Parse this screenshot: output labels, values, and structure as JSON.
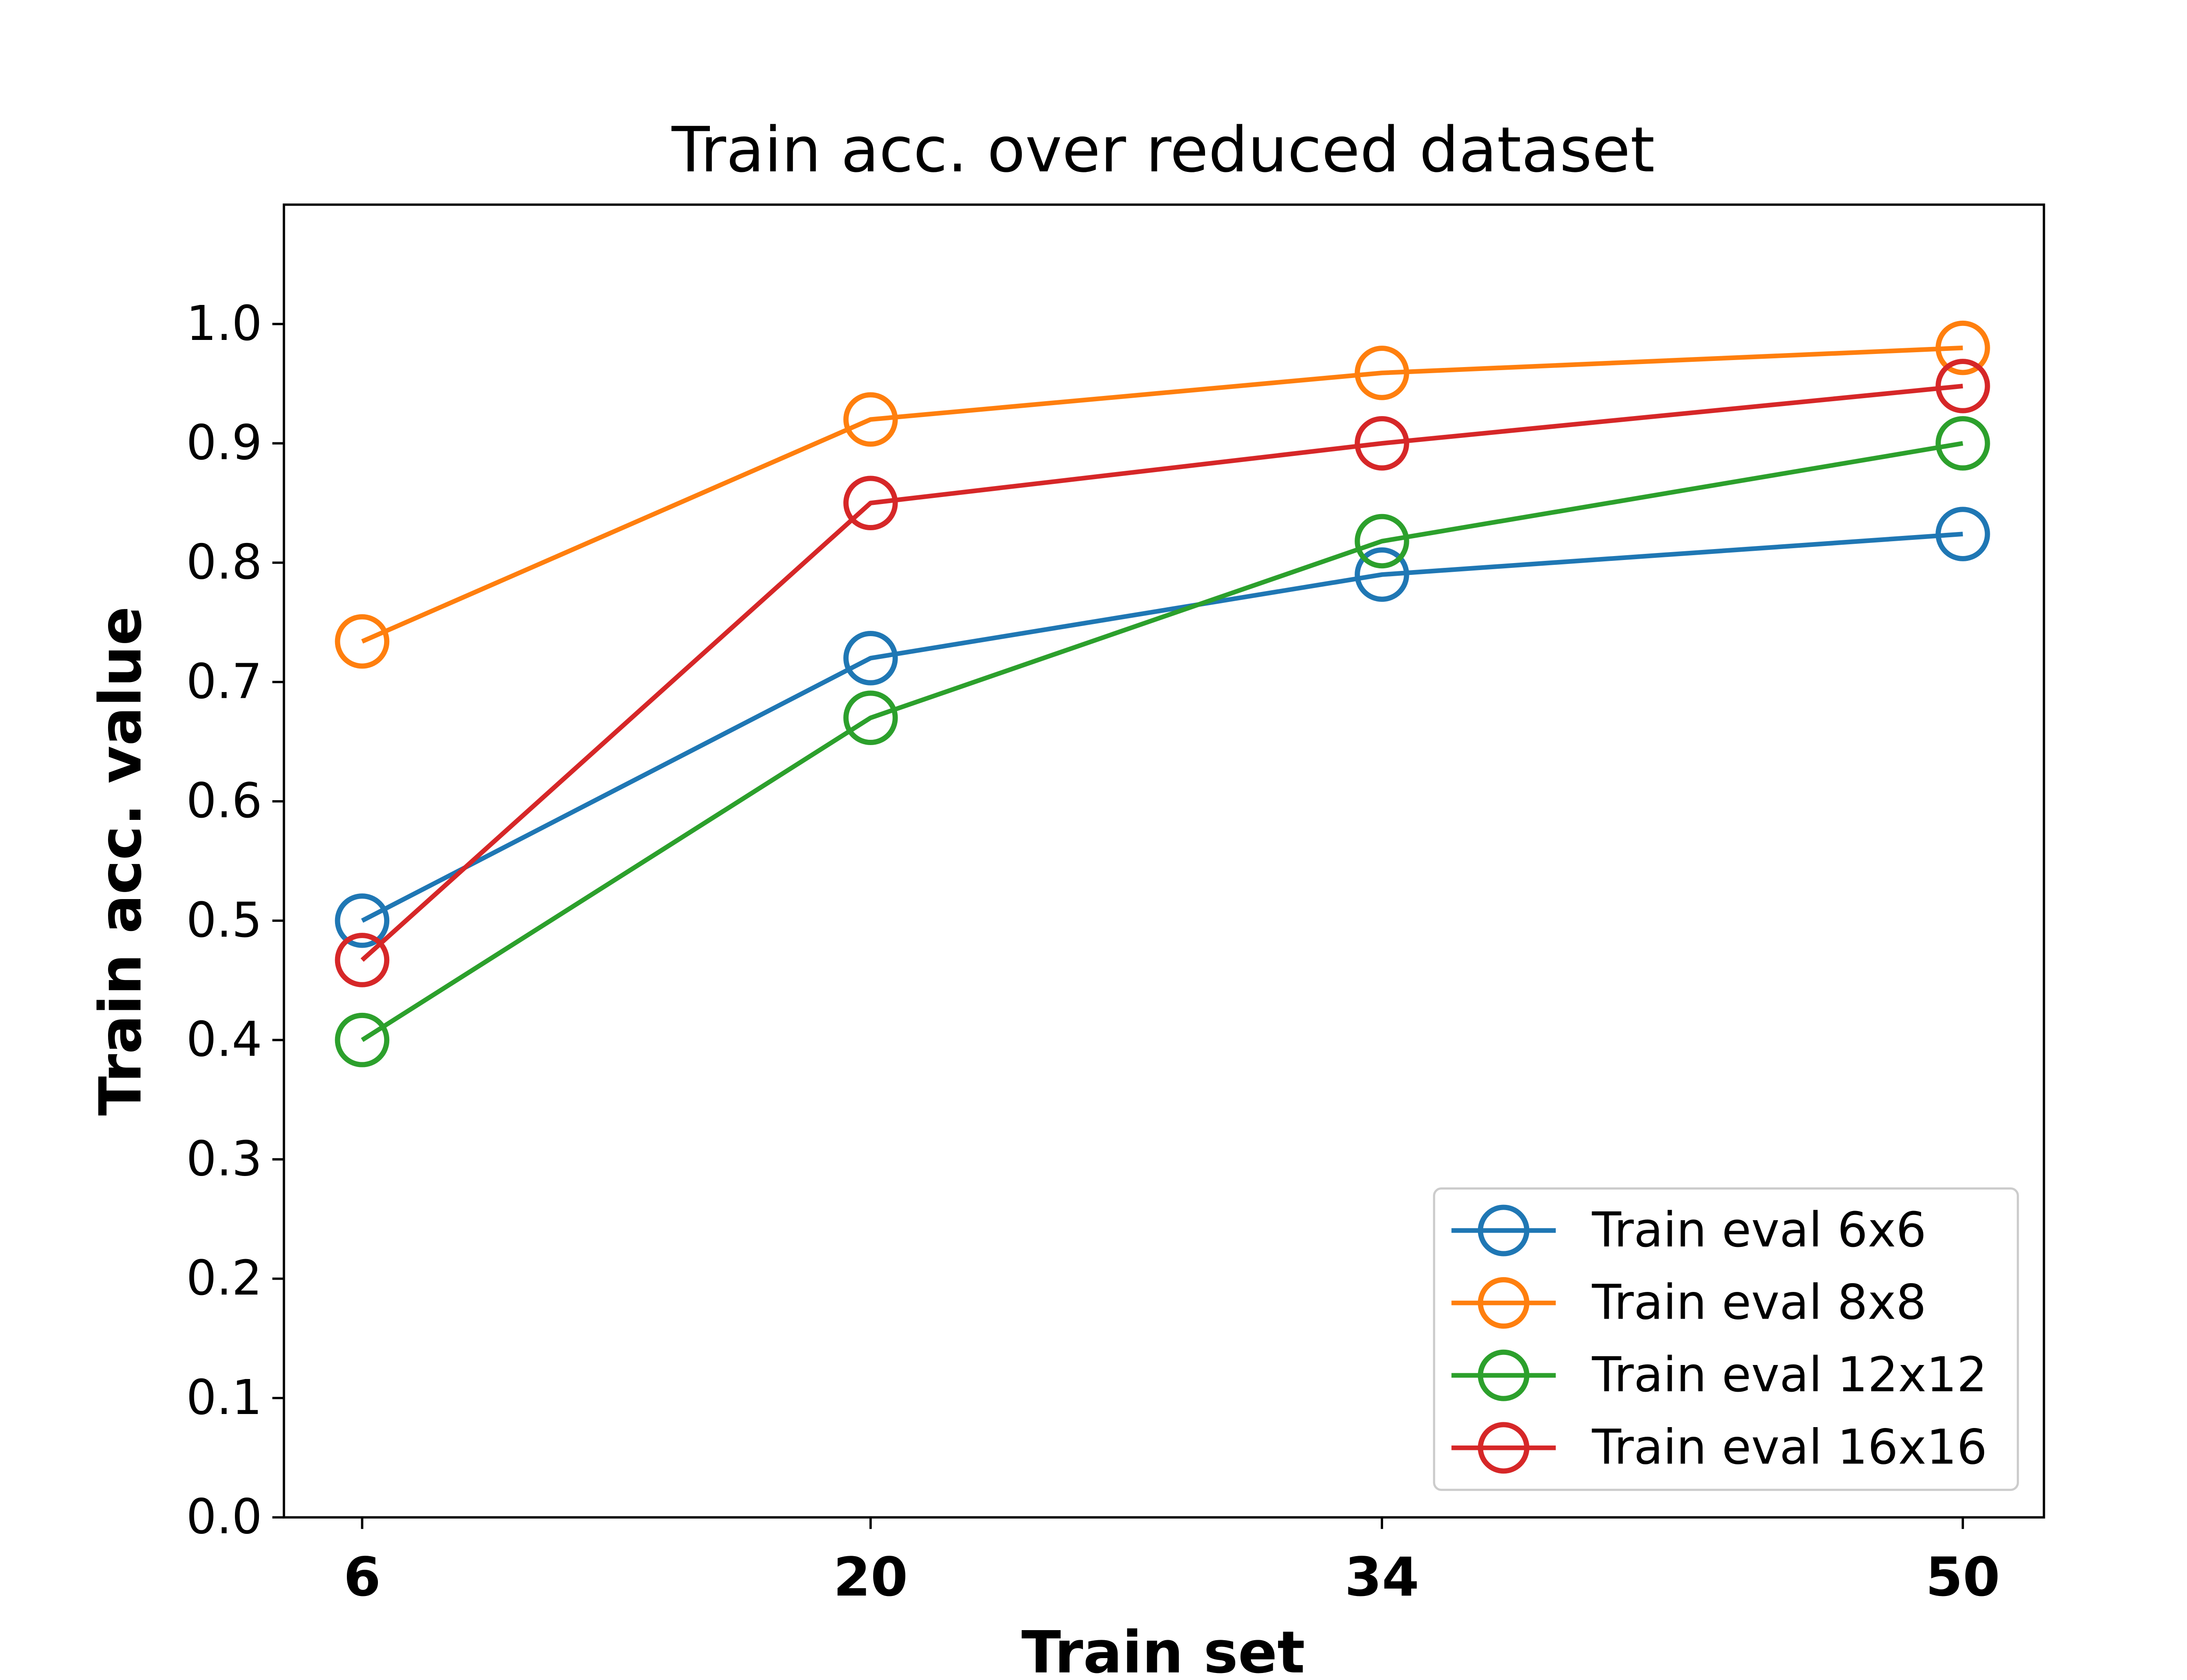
{
  "chart_data": {
    "type": "line",
    "title": "Train acc. over reduced dataset",
    "xlabel": "Train set",
    "ylabel": "Train acc. value",
    "x": [
      6,
      20,
      34,
      50
    ],
    "x_tick_labels": [
      "6",
      "20",
      "34",
      "50"
    ],
    "ylim": [
      0.0,
      1.1
    ],
    "y_ticks": [
      "0.0",
      "0.1",
      "0.2",
      "0.3",
      "0.4",
      "0.5",
      "0.6",
      "0.7",
      "0.8",
      "0.9",
      "1.0"
    ],
    "grid": false,
    "legend_position": "bottom-right",
    "series": [
      {
        "name": "Train eval 6x6",
        "color": "#1f77b4",
        "values": [
          0.5,
          0.72,
          0.79,
          0.824
        ]
      },
      {
        "name": "Train eval 8x8",
        "color": "#ff7f0e",
        "values": [
          0.734,
          0.92,
          0.959,
          0.98
        ]
      },
      {
        "name": "Train eval 12x12",
        "color": "#2ca02c",
        "values": [
          0.4,
          0.67,
          0.818,
          0.9
        ]
      },
      {
        "name": "Train eval 16x16",
        "color": "#d62728",
        "values": [
          0.467,
          0.85,
          0.9,
          0.948
        ]
      }
    ]
  }
}
